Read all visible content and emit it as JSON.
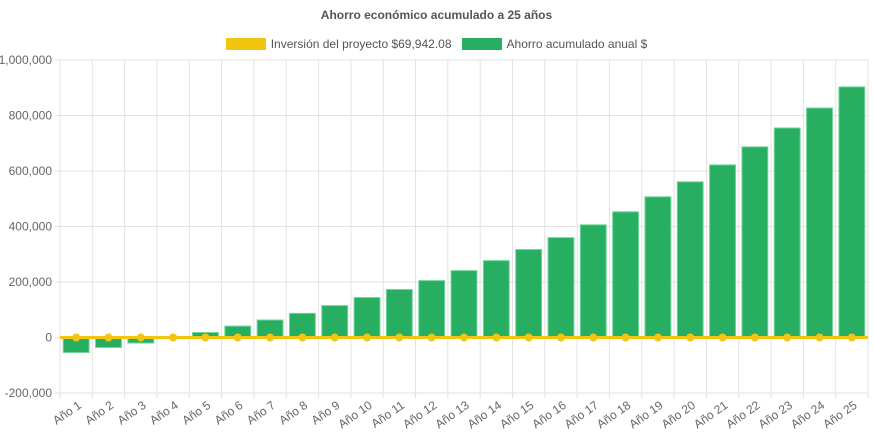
{
  "chart_data": {
    "type": "bar",
    "title": "Ahorro económico acumulado a 25 años",
    "categories": [
      "Año 1",
      "Año 2",
      "Año 3",
      "Año 4",
      "Año 5",
      "Año 6",
      "Año 7",
      "Año 8",
      "Año 9",
      "Año 10",
      "Año 11",
      "Año 12",
      "Año 13",
      "Año 14",
      "Año 15",
      "Año 16",
      "Año 17",
      "Año 18",
      "Año 19",
      "Año 20",
      "Año 21",
      "Año 22",
      "Año 23",
      "Año 24",
      "Año 25"
    ],
    "series": [
      {
        "name": "Inversión del proyecto $69,942.08",
        "type": "line",
        "color": "#f2c511",
        "values": [
          0,
          0,
          0,
          0,
          0,
          0,
          0,
          0,
          0,
          0,
          0,
          0,
          0,
          0,
          0,
          0,
          0,
          0,
          0,
          0,
          0,
          0,
          0,
          0,
          0
        ]
      },
      {
        "name": "Ahorro acumulado anual $",
        "type": "bar",
        "color": "#27ae60",
        "values": [
          -54000,
          -36000,
          -20000,
          -2000,
          18000,
          41000,
          63000,
          87000,
          115000,
          144000,
          173000,
          205000,
          241000,
          277000,
          317000,
          360000,
          406000,
          453000,
          507000,
          561000,
          622000,
          687000,
          755000,
          827000,
          903000
        ]
      }
    ],
    "ylim": [
      -200000,
      1000000
    ],
    "yticks": [
      "1,000,000",
      "800,000",
      "600,000",
      "400,000",
      "200,000",
      "0",
      "-200,000"
    ],
    "ytick_values": [
      1000000,
      800000,
      600000,
      400000,
      200000,
      0,
      -200000
    ],
    "grid": true,
    "legend": "top"
  }
}
